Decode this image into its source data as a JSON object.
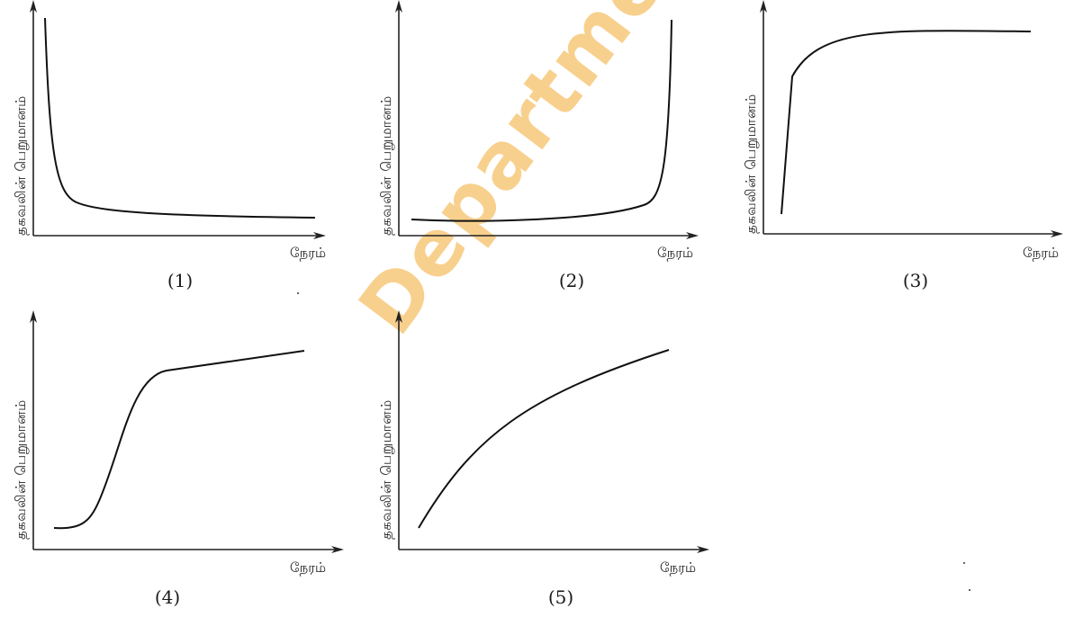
{
  "watermark": "Department of Exam",
  "graphs": [
    {
      "id": "1",
      "caption": "(1)",
      "ylabel": "தகவலின் பெறுமானம்",
      "xlabel": "நேரம்"
    },
    {
      "id": "2",
      "caption": "(2)",
      "ylabel": "தகவலின் பெறுமானம்",
      "xlabel": "நேரம்"
    },
    {
      "id": "3",
      "caption": "(3)",
      "ylabel": "தகவலின் பெறுமானம்",
      "xlabel": "நேரம்"
    },
    {
      "id": "4",
      "caption": "(4)",
      "ylabel": "தகவலின் பெறுமானம்",
      "xlabel": "நேரம்"
    },
    {
      "id": "5",
      "caption": "(5)",
      "ylabel": "தகவலின் பெறுமானம்",
      "xlabel": "நேரம்"
    }
  ]
}
